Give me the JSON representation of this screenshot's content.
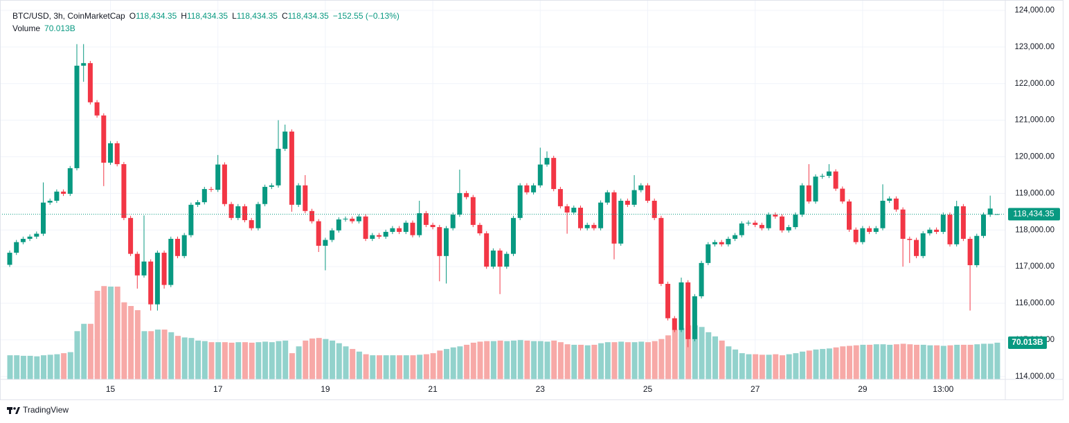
{
  "chart_data": {
    "type": "candlestick",
    "legend": {
      "symbol": "BTC/USD, 3h, CoinMarketCap",
      "ohlc_names": [
        "O",
        "H",
        "L",
        "C"
      ],
      "ohlc_values": [
        "118,434.35",
        "118,434.35",
        "118,434.35",
        "118,434.35"
      ],
      "change": "−152.55 (−0.13%)",
      "volume_name": "Volume"
    },
    "up_color": "#089981",
    "down_color": "#f23645",
    "volume_up_color": "#92d2cc",
    "volume_down_color": "#f7a9a7",
    "ylim": [
      113920,
      124190
    ],
    "yticks": [
      {
        "value": 114000,
        "label": "114,000.00"
      },
      {
        "value": 115000,
        "label": "115,000.00"
      },
      {
        "value": 116000,
        "label": "116,000.00"
      },
      {
        "value": 117000,
        "label": "117,000.00"
      },
      {
        "value": 118000,
        "label": "118,000.00"
      },
      {
        "value": 119000,
        "label": "119,000.00"
      },
      {
        "value": 120000,
        "label": "120,000.00"
      },
      {
        "value": 121000,
        "label": "121,000.00"
      },
      {
        "value": 122000,
        "label": "122,000.00"
      },
      {
        "value": 123000,
        "label": "123,000.00"
      },
      {
        "value": 124000,
        "label": "124,000.00"
      }
    ],
    "y2lim": [
      0,
      717
    ],
    "grid": true,
    "last_price_label": "118,434.35",
    "last_volume_label": "70.013B",
    "categories": [
      null,
      null,
      null,
      null,
      null,
      null,
      null,
      null,
      null,
      null,
      null,
      null,
      null,
      null,
      null,
      "15",
      null,
      null,
      null,
      null,
      null,
      null,
      null,
      null,
      null,
      null,
      null,
      null,
      null,
      null,
      null,
      "17",
      null,
      null,
      null,
      null,
      null,
      null,
      null,
      null,
      null,
      null,
      null,
      null,
      null,
      null,
      null,
      "19",
      null,
      null,
      null,
      null,
      null,
      null,
      null,
      null,
      null,
      null,
      null,
      null,
      null,
      null,
      null,
      "21",
      null,
      null,
      null,
      null,
      null,
      null,
      null,
      null,
      null,
      null,
      null,
      null,
      null,
      null,
      null,
      "23",
      null,
      null,
      null,
      null,
      null,
      null,
      null,
      null,
      null,
      null,
      null,
      null,
      null,
      null,
      null,
      "25",
      null,
      null,
      null,
      null,
      null,
      null,
      null,
      null,
      null,
      null,
      null,
      null,
      null,
      null,
      null,
      "27",
      null,
      null,
      null,
      null,
      null,
      null,
      null,
      null,
      null,
      null,
      null,
      null,
      null,
      null,
      null,
      "29",
      null,
      null,
      null,
      null,
      null,
      null,
      null,
      null,
      null,
      null,
      null,
      "13:00",
      null,
      null,
      null,
      null,
      null,
      null,
      null,
      null
    ],
    "open": [
      117050,
      117380,
      117670,
      117760,
      117820,
      117900,
      118750,
      118800,
      119050,
      118990,
      119690,
      122490,
      122560,
      121490,
      121130,
      119840,
      120370,
      119800,
      118330,
      117350,
      116760,
      117140,
      115970,
      117380,
      116500,
      117760,
      117290,
      117860,
      118690,
      118760,
      119120,
      119100,
      119790,
      118710,
      118330,
      118650,
      118270,
      118050,
      118710,
      119180,
      119220,
      120220,
      120690,
      118690,
      119220,
      118520,
      118240,
      117570,
      117730,
      117990,
      118290,
      118310,
      118240,
      118370,
      117760,
      117860,
      117820,
      117950,
      118050,
      117950,
      118200,
      117860,
      118460,
      118140,
      118080,
      117290,
      118050,
      118420,
      119010,
      118900,
      118140,
      117910,
      117000,
      117440,
      117000,
      117350,
      118330,
      119220,
      119030,
      119220,
      119790,
      119970,
      119120,
      118650,
      118480,
      118610,
      118050,
      118140,
      118050,
      118750,
      119030,
      117630,
      118800,
      118690,
      119090,
      119220,
      118800,
      118330,
      116530,
      115590,
      115270,
      116570,
      115020,
      116190,
      117100,
      117610,
      117670,
      117610,
      117760,
      117860,
      118180,
      118200,
      118140,
      118050,
      118420,
      118370,
      117990,
      118080,
      118420,
      119220,
      118780,
      119460,
      119480,
      119600,
      119130,
      118780,
      118010,
      117670,
      118050,
      117950,
      118050,
      118800,
      118860,
      118560,
      117760,
      117730,
      117290,
      117910,
      118010,
      117950,
      118420,
      117610,
      118650,
      117760,
      117040,
      117840,
      118420,
      118434.35
    ],
    "high": [
      117440,
      117730,
      117820,
      117880,
      117960,
      119300,
      118860,
      119110,
      119110,
      119750,
      123080,
      123080,
      122620,
      121550,
      121190,
      120430,
      120430,
      119860,
      118390,
      117410,
      118400,
      117200,
      117440,
      117440,
      117820,
      117820,
      117920,
      118750,
      118820,
      119180,
      119180,
      120050,
      119850,
      118770,
      118710,
      118710,
      118330,
      118770,
      119240,
      119280,
      121000,
      120880,
      120750,
      119280,
      119500,
      118580,
      118300,
      117790,
      118050,
      118350,
      118370,
      118370,
      118430,
      118430,
      117920,
      117920,
      118010,
      118110,
      118110,
      118260,
      118260,
      118800,
      118520,
      118200,
      118140,
      118110,
      118480,
      119650,
      119070,
      118960,
      118200,
      117970,
      117500,
      117500,
      117410,
      118390,
      119280,
      119280,
      119280,
      120250,
      120150,
      120030,
      119180,
      118710,
      118670,
      118670,
      118200,
      118200,
      118810,
      119090,
      119090,
      118860,
      118860,
      119500,
      119280,
      119280,
      118860,
      118390,
      116590,
      115650,
      116700,
      116630,
      116250,
      117160,
      117670,
      117730,
      117730,
      117820,
      117920,
      118240,
      118260,
      118260,
      118200,
      118480,
      118480,
      118430,
      118140,
      118480,
      119280,
      119800,
      119520,
      119540,
      119800,
      119660,
      119190,
      118840,
      118070,
      118110,
      118110,
      118110,
      119250,
      118920,
      118920,
      118620,
      117820,
      117790,
      117970,
      118070,
      118070,
      118480,
      118480,
      118800,
      118710,
      117820,
      117900,
      118480,
      118940,
      118434.35
    ],
    "low": [
      116990,
      117320,
      117610,
      117700,
      117760,
      117840,
      118690,
      118740,
      118930,
      118930,
      119630,
      122050,
      121430,
      121070,
      119200,
      119780,
      119740,
      118270,
      117290,
      116400,
      116700,
      115800,
      115800,
      116400,
      116440,
      117230,
      117230,
      117800,
      118630,
      118700,
      119040,
      119040,
      118650,
      118270,
      118270,
      118210,
      117990,
      117990,
      118650,
      119120,
      119160,
      120160,
      118500,
      118630,
      118460,
      118180,
      117400,
      116900,
      117670,
      117930,
      118230,
      118180,
      118180,
      117700,
      117700,
      117760,
      117760,
      117890,
      117890,
      117890,
      117800,
      117800,
      118080,
      118020,
      116600,
      116540,
      117990,
      118360,
      118840,
      118080,
      117850,
      116940,
      116940,
      116250,
      116940,
      117290,
      118270,
      118970,
      118970,
      119160,
      119730,
      119060,
      118590,
      117900,
      118420,
      117990,
      117990,
      117990,
      117990,
      118690,
      117200,
      117570,
      118630,
      118630,
      119030,
      118740,
      118270,
      116470,
      115530,
      115210,
      115210,
      114800,
      114960,
      116130,
      117040,
      117550,
      117550,
      117550,
      117700,
      117800,
      118120,
      118080,
      117990,
      117990,
      118310,
      117930,
      117930,
      118020,
      118360,
      118720,
      118720,
      119400,
      119420,
      119070,
      118720,
      117950,
      117610,
      117610,
      117890,
      117890,
      117990,
      118740,
      118500,
      117000,
      117100,
      117230,
      117230,
      117850,
      117890,
      117890,
      117550,
      117550,
      117700,
      115800,
      116980,
      117780,
      118360,
      118434.35
    ],
    "close": [
      117380,
      117670,
      117760,
      117820,
      117900,
      118750,
      118800,
      119050,
      118990,
      119690,
      122490,
      122560,
      121490,
      121130,
      119840,
      120370,
      119800,
      118330,
      117350,
      116760,
      117140,
      115970,
      117380,
      116500,
      117760,
      117290,
      117860,
      118690,
      118760,
      119120,
      119100,
      119790,
      118710,
      118330,
      118650,
      118270,
      118050,
      118710,
      119180,
      119220,
      120220,
      120690,
      118690,
      119220,
      118520,
      118240,
      117570,
      117730,
      117990,
      118290,
      118310,
      118240,
      118370,
      117760,
      117860,
      117820,
      117950,
      118050,
      117950,
      118200,
      117860,
      118460,
      118140,
      118080,
      117290,
      118050,
      118420,
      119010,
      118900,
      118140,
      117910,
      117000,
      117440,
      117000,
      117350,
      118330,
      119220,
      119030,
      119220,
      119790,
      119970,
      119120,
      118650,
      118480,
      118610,
      118050,
      118140,
      118050,
      118750,
      119030,
      117630,
      118800,
      118690,
      119090,
      119220,
      118800,
      118330,
      116530,
      115590,
      115270,
      116570,
      115020,
      116190,
      117100,
      117610,
      117670,
      117610,
      117760,
      117860,
      118180,
      118200,
      118140,
      118050,
      118420,
      118370,
      117990,
      118080,
      118420,
      119220,
      118780,
      119460,
      119480,
      119600,
      119130,
      118780,
      118010,
      117670,
      118050,
      117950,
      118050,
      118800,
      118860,
      118560,
      117760,
      117730,
      117290,
      117910,
      118010,
      117950,
      118420,
      117610,
      118650,
      117760,
      117040,
      117840,
      118420,
      118586.9,
      118434.35
    ],
    "volume": [
      46,
      46,
      45,
      45,
      44,
      46,
      47,
      48,
      50,
      52,
      92,
      106,
      106,
      169,
      178,
      177,
      177,
      147,
      140,
      132,
      92,
      92,
      95,
      95,
      90,
      83,
      80,
      79,
      74,
      73,
      71,
      71,
      71,
      70,
      71,
      71,
      70,
      71,
      72,
      71,
      73,
      74,
      50,
      63,
      74,
      78,
      79,
      77,
      74,
      69,
      63,
      58,
      53,
      48,
      46,
      46,
      46,
      46,
      46,
      46,
      46,
      47,
      48,
      50,
      55,
      58,
      61,
      63,
      66,
      70,
      72,
      73,
      73,
      74,
      73,
      74,
      75,
      74,
      73,
      73,
      72,
      74,
      71,
      67,
      66,
      66,
      65,
      66,
      69,
      71,
      71,
      72,
      71,
      71,
      72,
      71,
      73,
      77,
      84,
      95,
      98,
      103,
      103,
      100,
      90,
      82,
      74,
      63,
      57,
      50,
      48,
      48,
      47,
      47,
      48,
      46,
      48,
      50,
      53,
      55,
      57,
      58,
      59,
      61,
      63,
      64,
      65,
      66,
      66,
      67,
      67,
      66,
      67,
      68,
      67,
      66,
      66,
      65,
      65,
      64,
      65,
      66,
      66,
      66,
      67,
      68,
      68,
      70.013
    ]
  },
  "footer": {
    "brand": "TradingView"
  }
}
